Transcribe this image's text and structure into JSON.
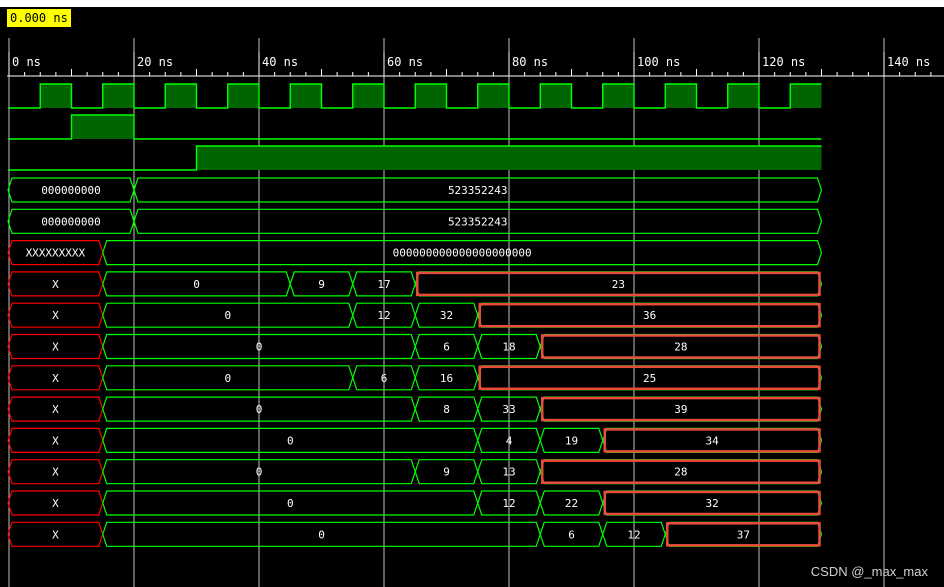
{
  "cursor_time": "0.000 ns",
  "watermark": "CSDN @_max_max",
  "time_labels": [
    "0 ns",
    "20 ns",
    "40 ns",
    "60 ns",
    "80 ns",
    "100 ns",
    "120 ns",
    "140 ns"
  ],
  "colors": {
    "background": "#000000",
    "signal": "#00ff00",
    "high_fill": "#006400",
    "unknown": "#ff0000",
    "highlight_box": "#e84a3c",
    "grid": "#ffffff",
    "cursor_bg": "#ffff00"
  },
  "clock": {
    "first_rise_ns": 5,
    "period_ns": 10
  },
  "bit_signals": [
    {
      "segments": [
        {
          "from_ns": 0,
          "to_ns": 10,
          "level": 0
        },
        {
          "from_ns": 10,
          "to_ns": 20,
          "level": 1
        },
        {
          "from_ns": 20,
          "to_ns": 130,
          "level": 0
        }
      ]
    },
    {
      "segments": [
        {
          "from_ns": 0,
          "to_ns": 30,
          "level": 0
        },
        {
          "from_ns": 30,
          "to_ns": 130,
          "level": 1
        }
      ]
    }
  ],
  "bus_signals": [
    {
      "segments": [
        {
          "from_ns": 0,
          "to_ns": 20,
          "value": "000000000"
        },
        {
          "from_ns": 20,
          "to_ns": 130,
          "value": "523352243"
        }
      ]
    },
    {
      "segments": [
        {
          "from_ns": 0,
          "to_ns": 20,
          "value": "000000000"
        },
        {
          "from_ns": 20,
          "to_ns": 130,
          "value": "523352243"
        }
      ]
    },
    {
      "segments": [
        {
          "from_ns": 0,
          "to_ns": 15,
          "value": "XXXXXXXXX",
          "unknown": true
        },
        {
          "from_ns": 15,
          "to_ns": 130,
          "value": "000000000000000000000"
        }
      ]
    },
    {
      "segments": [
        {
          "from_ns": 0,
          "to_ns": 15,
          "value": "X",
          "unknown": true
        },
        {
          "from_ns": 15,
          "to_ns": 45,
          "value": "0"
        },
        {
          "from_ns": 45,
          "to_ns": 55,
          "value": "9"
        },
        {
          "from_ns": 55,
          "to_ns": 65,
          "value": "17"
        },
        {
          "from_ns": 65,
          "to_ns": 130,
          "value": "23",
          "highlight": true
        }
      ]
    },
    {
      "segments": [
        {
          "from_ns": 0,
          "to_ns": 15,
          "value": "X",
          "unknown": true
        },
        {
          "from_ns": 15,
          "to_ns": 55,
          "value": "0"
        },
        {
          "from_ns": 55,
          "to_ns": 65,
          "value": "12"
        },
        {
          "from_ns": 65,
          "to_ns": 75,
          "value": "32"
        },
        {
          "from_ns": 75,
          "to_ns": 130,
          "value": "36",
          "highlight": true
        }
      ]
    },
    {
      "segments": [
        {
          "from_ns": 0,
          "to_ns": 15,
          "value": "X",
          "unknown": true
        },
        {
          "from_ns": 15,
          "to_ns": 65,
          "value": "0"
        },
        {
          "from_ns": 65,
          "to_ns": 75,
          "value": "6"
        },
        {
          "from_ns": 75,
          "to_ns": 85,
          "value": "18"
        },
        {
          "from_ns": 85,
          "to_ns": 130,
          "value": "28",
          "highlight": true
        }
      ]
    },
    {
      "segments": [
        {
          "from_ns": 0,
          "to_ns": 15,
          "value": "X",
          "unknown": true
        },
        {
          "from_ns": 15,
          "to_ns": 55,
          "value": "0"
        },
        {
          "from_ns": 55,
          "to_ns": 65,
          "value": "6"
        },
        {
          "from_ns": 65,
          "to_ns": 75,
          "value": "16"
        },
        {
          "from_ns": 75,
          "to_ns": 130,
          "value": "25",
          "highlight": true
        }
      ]
    },
    {
      "segments": [
        {
          "from_ns": 0,
          "to_ns": 15,
          "value": "X",
          "unknown": true
        },
        {
          "from_ns": 15,
          "to_ns": 65,
          "value": "0"
        },
        {
          "from_ns": 65,
          "to_ns": 75,
          "value": "8"
        },
        {
          "from_ns": 75,
          "to_ns": 85,
          "value": "33"
        },
        {
          "from_ns": 85,
          "to_ns": 130,
          "value": "39",
          "highlight": true
        }
      ]
    },
    {
      "segments": [
        {
          "from_ns": 0,
          "to_ns": 15,
          "value": "X",
          "unknown": true
        },
        {
          "from_ns": 15,
          "to_ns": 75,
          "value": "0"
        },
        {
          "from_ns": 75,
          "to_ns": 85,
          "value": "4"
        },
        {
          "from_ns": 85,
          "to_ns": 95,
          "value": "19"
        },
        {
          "from_ns": 95,
          "to_ns": 130,
          "value": "34",
          "highlight": true
        }
      ]
    },
    {
      "segments": [
        {
          "from_ns": 0,
          "to_ns": 15,
          "value": "X",
          "unknown": true
        },
        {
          "from_ns": 15,
          "to_ns": 65,
          "value": "0"
        },
        {
          "from_ns": 65,
          "to_ns": 75,
          "value": "9"
        },
        {
          "from_ns": 75,
          "to_ns": 85,
          "value": "13"
        },
        {
          "from_ns": 85,
          "to_ns": 130,
          "value": "28",
          "highlight": true
        }
      ]
    },
    {
      "segments": [
        {
          "from_ns": 0,
          "to_ns": 15,
          "value": "X",
          "unknown": true
        },
        {
          "from_ns": 15,
          "to_ns": 75,
          "value": "0"
        },
        {
          "from_ns": 75,
          "to_ns": 85,
          "value": "12"
        },
        {
          "from_ns": 85,
          "to_ns": 95,
          "value": "22"
        },
        {
          "from_ns": 95,
          "to_ns": 130,
          "value": "32",
          "highlight": true
        }
      ]
    },
    {
      "segments": [
        {
          "from_ns": 0,
          "to_ns": 15,
          "value": "X",
          "unknown": true
        },
        {
          "from_ns": 15,
          "to_ns": 85,
          "value": "0"
        },
        {
          "from_ns": 85,
          "to_ns": 95,
          "value": "6"
        },
        {
          "from_ns": 95,
          "to_ns": 105,
          "value": "12"
        },
        {
          "from_ns": 105,
          "to_ns": 130,
          "value": "37",
          "highlight": true
        }
      ]
    }
  ]
}
